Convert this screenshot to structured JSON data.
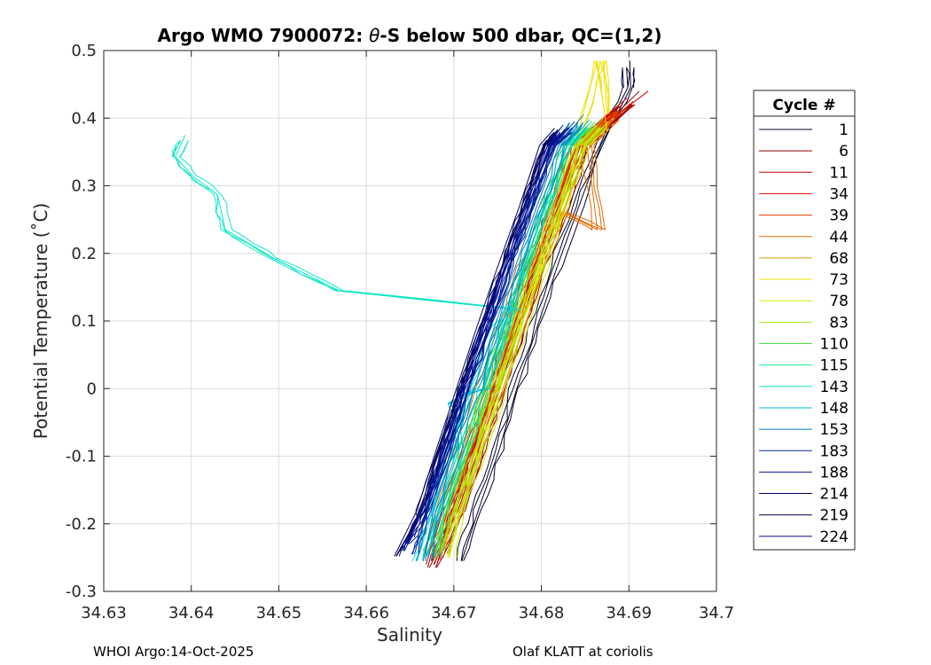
{
  "chart_data": {
    "type": "line",
    "title_prefix": "Argo WMO 7900072: ",
    "title_theta": "θ",
    "title_suffix": "-S below 500 dbar,  QC=(1,2)",
    "xlabel": "Salinity",
    "ylabel": "Potential Temperature (˚C)",
    "xlim": [
      34.63,
      34.7
    ],
    "ylim": [
      -0.3,
      0.5
    ],
    "xticks": [
      "34.63",
      "34.64",
      "34.65",
      "34.66",
      "34.67",
      "34.68",
      "34.69",
      "34.7"
    ],
    "yticks": [
      "-0.3",
      "-0.2",
      "-0.1",
      "0",
      "0.1",
      "0.2",
      "0.3",
      "0.4",
      "0.5"
    ],
    "grid": true,
    "legend": {
      "title": "Cycle #",
      "placement": "outside-right",
      "entries": [
        {
          "label": "1",
          "color": "#00002a"
        },
        {
          "label": "6",
          "color": "#8b0000"
        },
        {
          "label": "11",
          "color": "#c00000"
        },
        {
          "label": "34",
          "color": "#dd1a00"
        },
        {
          "label": "39",
          "color": "#e43a00"
        },
        {
          "label": "44",
          "color": "#e06a00"
        },
        {
          "label": "68",
          "color": "#e59600"
        },
        {
          "label": "73",
          "color": "#f0e000"
        },
        {
          "label": "78",
          "color": "#d0ee00"
        },
        {
          "label": "83",
          "color": "#9ee81a"
        },
        {
          "label": "110",
          "color": "#3ee63e"
        },
        {
          "label": "115",
          "color": "#1ee88a"
        },
        {
          "label": "143",
          "color": "#10e6c8"
        },
        {
          "label": "148",
          "color": "#00b8dc"
        },
        {
          "label": "153",
          "color": "#0080c0"
        },
        {
          "label": "183",
          "color": "#0a2aa8"
        },
        {
          "label": "188",
          "color": "#061890"
        },
        {
          "label": "214",
          "color": "#020a70"
        },
        {
          "label": "219",
          "color": "#000050"
        },
        {
          "label": "224",
          "color": "#000a90"
        }
      ]
    },
    "series": [
      {
        "name": "1",
        "color": "#00002a",
        "points": [
          [
            34.6709,
            -0.255
          ],
          [
            34.6728,
            -0.18
          ],
          [
            34.6752,
            -0.09
          ],
          [
            34.6772,
            -0.0
          ],
          [
            34.6795,
            0.09
          ],
          [
            34.6818,
            0.18
          ],
          [
            34.6843,
            0.27
          ],
          [
            34.6868,
            0.36
          ],
          [
            34.6902,
            0.445
          ],
          [
            34.6901,
            0.485
          ]
        ]
      },
      {
        "name": "6",
        "color": "#8b0000",
        "points": [
          [
            34.6672,
            -0.265
          ],
          [
            34.6705,
            -0.18
          ],
          [
            34.6728,
            -0.09
          ],
          [
            34.6752,
            -0.0
          ],
          [
            34.6775,
            0.09
          ],
          [
            34.6798,
            0.18
          ],
          [
            34.6823,
            0.27
          ],
          [
            34.6848,
            0.36
          ],
          [
            34.6912,
            0.44
          ]
        ]
      },
      {
        "name": "11",
        "color": "#c00000",
        "points": [
          [
            34.6678,
            -0.26
          ],
          [
            34.6698,
            -0.18
          ],
          [
            34.6722,
            -0.09
          ],
          [
            34.6745,
            -0.0
          ],
          [
            34.6768,
            0.09
          ],
          [
            34.6792,
            0.18
          ],
          [
            34.6816,
            0.27
          ],
          [
            34.6841,
            0.36
          ],
          [
            34.6922,
            0.44
          ]
        ]
      },
      {
        "name": "34",
        "color": "#dd1a00",
        "points": [
          [
            34.6675,
            -0.255
          ],
          [
            34.6693,
            -0.18
          ],
          [
            34.6716,
            -0.09
          ],
          [
            34.6739,
            -0.0
          ],
          [
            34.6762,
            0.09
          ],
          [
            34.6786,
            0.18
          ],
          [
            34.681,
            0.27
          ],
          [
            34.6835,
            0.36
          ],
          [
            34.6898,
            0.43
          ]
        ]
      },
      {
        "name": "39",
        "color": "#e43a00",
        "points": [
          [
            34.6685,
            -0.25
          ],
          [
            34.6702,
            -0.18
          ],
          [
            34.6726,
            -0.09
          ],
          [
            34.6749,
            -0.0
          ],
          [
            34.6772,
            0.09
          ],
          [
            34.6796,
            0.18
          ],
          [
            34.682,
            0.27
          ],
          [
            34.6845,
            0.36
          ],
          [
            34.6905,
            0.425
          ]
        ]
      },
      {
        "name": "44",
        "color": "#e06a00",
        "points": [
          [
            34.6672,
            -0.24
          ],
          [
            34.6686,
            -0.18
          ],
          [
            34.6709,
            -0.09
          ],
          [
            34.6733,
            -0.0
          ],
          [
            34.6757,
            0.09
          ],
          [
            34.678,
            0.18
          ],
          [
            34.6826,
            0.26
          ],
          [
            34.6864,
            0.235
          ],
          [
            34.6852,
            0.36
          ],
          [
            34.6888,
            0.41
          ]
        ]
      },
      {
        "name": "68",
        "color": "#e59600",
        "points": [
          [
            34.6692,
            -0.245
          ],
          [
            34.671,
            -0.18
          ],
          [
            34.6733,
            -0.09
          ],
          [
            34.6756,
            -0.0
          ],
          [
            34.678,
            0.09
          ],
          [
            34.6804,
            0.18
          ],
          [
            34.6828,
            0.27
          ],
          [
            34.6852,
            0.36
          ],
          [
            34.6882,
            0.4
          ]
        ]
      },
      {
        "name": "73",
        "color": "#f0e000",
        "points": [
          [
            34.6682,
            -0.235
          ],
          [
            34.6694,
            -0.18
          ],
          [
            34.6718,
            -0.09
          ],
          [
            34.6742,
            -0.0
          ],
          [
            34.6766,
            0.09
          ],
          [
            34.679,
            0.18
          ],
          [
            34.6814,
            0.27
          ],
          [
            34.6838,
            0.36
          ],
          [
            34.6864,
            0.485
          ],
          [
            34.6875,
            0.38
          ]
        ]
      },
      {
        "name": "78",
        "color": "#d0ee00",
        "points": [
          [
            34.6695,
            -0.25
          ],
          [
            34.6706,
            -0.18
          ],
          [
            34.673,
            -0.09
          ],
          [
            34.6753,
            -0.0
          ],
          [
            34.6776,
            0.09
          ],
          [
            34.68,
            0.18
          ],
          [
            34.6824,
            0.27
          ],
          [
            34.6849,
            0.36
          ],
          [
            34.6876,
            0.395
          ]
        ]
      },
      {
        "name": "83",
        "color": "#9ee81a",
        "points": [
          [
            34.6686,
            -0.24
          ],
          [
            34.6701,
            -0.18
          ],
          [
            34.6725,
            -0.09
          ],
          [
            34.6747,
            -0.0
          ],
          [
            34.677,
            0.09
          ],
          [
            34.6795,
            0.18
          ],
          [
            34.6818,
            0.27
          ],
          [
            34.6843,
            0.36
          ],
          [
            34.6871,
            0.4
          ]
        ]
      },
      {
        "name": "110",
        "color": "#3ee63e",
        "points": [
          [
            34.6674,
            -0.245
          ],
          [
            34.6692,
            -0.18
          ],
          [
            34.6715,
            -0.09
          ],
          [
            34.6739,
            -0.0
          ],
          [
            34.6762,
            0.09
          ],
          [
            34.6785,
            0.18
          ],
          [
            34.6809,
            0.27
          ],
          [
            34.6834,
            0.36
          ],
          [
            34.6862,
            0.395
          ]
        ]
      },
      {
        "name": "115",
        "color": "#1ee88a",
        "points": [
          [
            34.6679,
            -0.25
          ],
          [
            34.6689,
            -0.18
          ],
          [
            34.6712,
            -0.09
          ],
          [
            34.6735,
            -0.0
          ],
          [
            34.6758,
            0.09
          ],
          [
            34.6781,
            0.18
          ],
          [
            34.6805,
            0.27
          ],
          [
            34.683,
            0.36
          ],
          [
            34.6858,
            0.395
          ]
        ]
      },
      {
        "name": "143",
        "color": "#10e6c8",
        "points": [
          [
            34.6658,
            -0.255
          ],
          [
            34.6676,
            -0.18
          ],
          [
            34.6699,
            -0.09
          ],
          [
            34.6723,
            -0.0
          ],
          [
            34.6747,
            0.09
          ],
          [
            34.6767,
            0.118
          ],
          [
            34.6569,
            0.145
          ],
          [
            34.6494,
            0.193
          ],
          [
            34.6439,
            0.235
          ],
          [
            34.643,
            0.287
          ],
          [
            34.6401,
            0.315
          ],
          [
            34.6382,
            0.343
          ],
          [
            34.6393,
            0.375
          ]
        ]
      },
      {
        "name": "148",
        "color": "#00b8dc",
        "points": [
          [
            34.667,
            -0.25
          ],
          [
            34.6682,
            -0.18
          ],
          [
            34.6706,
            -0.09
          ],
          [
            34.6703,
            -0.045
          ],
          [
            34.6697,
            -0.022
          ],
          [
            34.6715,
            -0.008
          ],
          [
            34.6734,
            -0.0
          ],
          [
            34.6757,
            0.09
          ],
          [
            34.678,
            0.18
          ],
          [
            34.6804,
            0.27
          ],
          [
            34.6829,
            0.36
          ],
          [
            34.6855,
            0.398
          ]
        ]
      },
      {
        "name": "153",
        "color": "#0080c0",
        "points": [
          [
            34.6665,
            -0.255
          ],
          [
            34.6677,
            -0.18
          ],
          [
            34.67,
            -0.09
          ],
          [
            34.6723,
            -0.0
          ],
          [
            34.6746,
            0.09
          ],
          [
            34.677,
            0.18
          ],
          [
            34.6795,
            0.27
          ],
          [
            34.682,
            0.36
          ],
          [
            34.6848,
            0.405
          ]
        ]
      },
      {
        "name": "183",
        "color": "#0a2aa8",
        "points": [
          [
            34.6655,
            -0.245
          ],
          [
            34.667,
            -0.18
          ],
          [
            34.6694,
            -0.09
          ],
          [
            34.6716,
            -0.0
          ],
          [
            34.674,
            0.09
          ],
          [
            34.6764,
            0.18
          ],
          [
            34.6789,
            0.27
          ],
          [
            34.6814,
            0.36
          ],
          [
            34.6838,
            0.395
          ]
        ]
      },
      {
        "name": "188",
        "color": "#061890",
        "points": [
          [
            34.6645,
            -0.23
          ],
          [
            34.6666,
            -0.18
          ],
          [
            34.6689,
            -0.09
          ],
          [
            34.6712,
            -0.0
          ],
          [
            34.6736,
            0.09
          ],
          [
            34.676,
            0.18
          ],
          [
            34.6785,
            0.27
          ],
          [
            34.681,
            0.36
          ],
          [
            34.6832,
            0.385
          ]
        ]
      },
      {
        "name": "214",
        "color": "#020a70",
        "points": [
          [
            34.6648,
            -0.22
          ],
          [
            34.6661,
            -0.18
          ],
          [
            34.6684,
            -0.09
          ],
          [
            34.6707,
            -0.0
          ],
          [
            34.6731,
            0.09
          ],
          [
            34.6755,
            0.18
          ],
          [
            34.678,
            0.27
          ],
          [
            34.6804,
            0.36
          ],
          [
            34.6822,
            0.385
          ]
        ]
      },
      {
        "name": "219",
        "color": "#000050",
        "points": [
          [
            34.6632,
            -0.248
          ],
          [
            34.6658,
            -0.18
          ],
          [
            34.668,
            -0.09
          ],
          [
            34.6703,
            -0.0
          ],
          [
            34.6726,
            0.09
          ],
          [
            34.675,
            0.18
          ],
          [
            34.6775,
            0.27
          ],
          [
            34.6798,
            0.36
          ],
          [
            34.6815,
            0.385
          ]
        ]
      },
      {
        "name": "224",
        "color": "#000a90",
        "points": [
          [
            34.6641,
            -0.24
          ],
          [
            34.6664,
            -0.18
          ],
          [
            34.6688,
            -0.09
          ],
          [
            34.671,
            -0.0
          ],
          [
            34.6734,
            0.09
          ],
          [
            34.6758,
            0.18
          ],
          [
            34.6783,
            0.27
          ],
          [
            34.6807,
            0.36
          ],
          [
            34.6825,
            0.39
          ]
        ]
      }
    ]
  },
  "footer": {
    "left": "WHOI Argo:14-Oct-2025",
    "right": "Olaf KLATT at coriolis"
  }
}
